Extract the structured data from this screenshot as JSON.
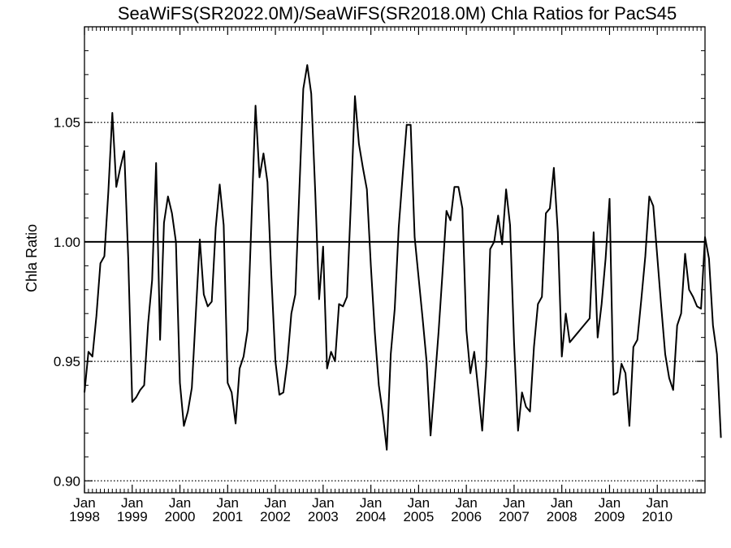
{
  "chart_data": {
    "type": "line",
    "title": "SeaWiFS(SR2022.0M)/SeaWiFS(SR2018.0M)  Chla Ratios for PacS45",
    "xlabel": "",
    "ylabel": "Chla Ratio",
    "ylim": [
      0.895,
      1.09
    ],
    "xlim": [
      1998.0,
      2011.0
    ],
    "grid": "horizontal dotted at labeled ticks",
    "reference_line": 1.0,
    "y_ticks": [
      0.9,
      0.95,
      1.0,
      1.05
    ],
    "y_tick_labels": [
      "0.90",
      "0.95",
      "1.00",
      "1.05"
    ],
    "x_ticks": [
      {
        "month": "Jan",
        "year": "1998"
      },
      {
        "month": "Jan",
        "year": "1999"
      },
      {
        "month": "Jan",
        "year": "2000"
      },
      {
        "month": "Jan",
        "year": "2001"
      },
      {
        "month": "Jan",
        "year": "2002"
      },
      {
        "month": "Jan",
        "year": "2003"
      },
      {
        "month": "Jan",
        "year": "2004"
      },
      {
        "month": "Jan",
        "year": "2005"
      },
      {
        "month": "Jan",
        "year": "2006"
      },
      {
        "month": "Jan",
        "year": "2007"
      },
      {
        "month": "Jan",
        "year": "2008"
      },
      {
        "month": "Jan",
        "year": "2009"
      },
      {
        "month": "Jan",
        "year": "2010"
      }
    ],
    "series": [
      {
        "values": [
          0.937,
          0.954,
          0.952,
          0.969,
          0.991,
          0.994,
          1.021,
          1.054,
          1.023,
          1.031,
          1.038,
          0.993,
          0.933,
          0.935,
          0.938,
          0.94,
          0.966,
          0.984,
          1.033,
          0.959,
          1.008,
          1.019,
          1.012,
          1.0,
          0.941,
          0.923,
          0.929,
          0.939,
          0.97,
          1.001,
          0.978,
          0.973,
          0.975,
          1.006,
          1.024,
          1.007,
          0.941,
          0.937,
          0.924,
          0.947,
          0.952,
          0.963,
          1.01,
          1.057,
          1.027,
          1.037,
          1.025,
          0.985,
          0.95,
          0.936,
          0.937,
          0.95,
          0.97,
          0.978,
          1.021,
          1.064,
          1.074,
          1.062,
          1.021,
          0.976,
          0.998,
          0.947,
          0.954,
          0.95,
          0.974,
          0.973,
          0.977,
          1.017,
          1.061,
          1.041,
          1.031,
          1.022,
          0.99,
          0.962,
          0.94,
          0.928,
          0.913,
          0.953,
          0.972,
          1.006,
          1.028,
          1.049,
          1.049,
          1.002,
          0.985,
          0.968,
          0.95,
          0.919,
          0.94,
          0.962,
          0.987,
          1.013,
          1.009,
          1.023,
          1.023,
          1.014,
          0.963,
          0.945,
          0.954,
          0.938,
          0.921,
          0.948,
          0.997,
          1.0,
          1.011,
          0.999,
          1.022,
          1.007,
          0.958,
          0.921,
          0.937,
          0.931,
          0.929,
          0.956,
          0.974,
          0.977,
          1.012,
          1.014,
          1.031,
          1.004,
          0.952,
          0.97,
          0.958,
          0.96,
          0.962,
          0.964,
          0.966,
          0.968,
          1.004,
          0.96,
          0.974,
          0.993,
          1.018,
          0.936,
          0.937,
          0.949,
          0.945,
          0.923,
          0.956,
          0.959,
          0.976,
          0.994,
          1.019,
          1.015,
          0.994,
          0.973,
          0.953,
          0.943,
          0.938,
          0.965,
          0.97,
          0.995,
          0.98,
          0.977,
          0.973,
          0.972,
          1.002,
          0.993,
          0.965,
          0.953,
          0.918
        ]
      }
    ]
  }
}
